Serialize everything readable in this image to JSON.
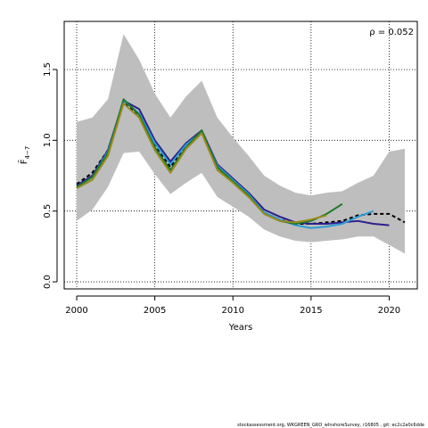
{
  "chart_data": {
    "type": "line",
    "xlabel": "Years",
    "ylabel": "F̄",
    "ylabel_sub": "4−7",
    "xlim": [
      1999.2,
      2021.8
    ],
    "ylim": [
      -0.05,
      1.84
    ],
    "xticks": [
      2000,
      2005,
      2010,
      2015,
      2020
    ],
    "yticks": [
      0.0,
      0.5,
      1.0,
      1.5
    ],
    "ytick_labels": [
      "0.0",
      "0.5",
      "1.0",
      "1.5"
    ],
    "grid": true,
    "annotation": "ρ = 0.052",
    "footer": "stockassessment.org, WKGREEN_GRO_wInshoreSurvey, r16805 , git: ec2c2a0c6dde",
    "band": {
      "color": "#bebebe",
      "x": [
        2000,
        2001,
        2002,
        2003,
        2004,
        2005,
        2006,
        2007,
        2008,
        2009,
        2010,
        2011,
        2012,
        2013,
        2014,
        2015,
        2016,
        2017,
        2018,
        2019,
        2020,
        2021
      ],
      "upper": [
        1.13,
        1.16,
        1.29,
        1.75,
        1.57,
        1.33,
        1.16,
        1.31,
        1.42,
        1.16,
        1.02,
        0.89,
        0.75,
        0.68,
        0.63,
        0.61,
        0.63,
        0.64,
        0.7,
        0.75,
        0.92,
        0.94
      ],
      "lower": [
        0.43,
        0.51,
        0.67,
        0.91,
        0.92,
        0.76,
        0.62,
        0.7,
        0.77,
        0.6,
        0.53,
        0.46,
        0.37,
        0.32,
        0.29,
        0.28,
        0.29,
        0.3,
        0.32,
        0.32,
        0.26,
        0.2
      ]
    },
    "series": [
      {
        "color": "#000000",
        "dash": "4,3",
        "x": [
          2000,
          2001,
          2002,
          2003,
          2004,
          2005,
          2006,
          2007,
          2008,
          2009,
          2010,
          2011,
          2012,
          2013,
          2014,
          2015,
          2016,
          2017,
          2018,
          2019,
          2020,
          2021
        ],
        "values": [
          0.69,
          0.77,
          0.93,
          1.27,
          1.18,
          0.96,
          0.81,
          0.96,
          1.06,
          0.81,
          0.71,
          0.62,
          0.49,
          0.44,
          0.41,
          0.41,
          0.42,
          0.43,
          0.47,
          0.48,
          0.48,
          0.42
        ]
      },
      {
        "color": "#2c1f8a",
        "dash": "",
        "x": [
          2000,
          2001,
          2002,
          2003,
          2004,
          2005,
          2006,
          2007,
          2008,
          2009,
          2010,
          2011,
          2012,
          2013,
          2014,
          2015,
          2016,
          2017,
          2018,
          2019,
          2020
        ],
        "values": [
          0.68,
          0.75,
          0.93,
          1.28,
          1.22,
          1.0,
          0.85,
          0.98,
          1.07,
          0.83,
          0.73,
          0.63,
          0.51,
          0.46,
          0.42,
          0.41,
          0.41,
          0.42,
          0.43,
          0.41,
          0.4
        ]
      },
      {
        "color": "#2f9bd4",
        "dash": "",
        "x": [
          2000,
          2001,
          2002,
          2003,
          2004,
          2005,
          2006,
          2007,
          2008,
          2009,
          2010,
          2011,
          2012,
          2013,
          2014,
          2015,
          2016,
          2017,
          2018,
          2019
        ],
        "values": [
          0.67,
          0.74,
          0.92,
          1.28,
          1.19,
          0.98,
          0.83,
          0.97,
          1.06,
          0.82,
          0.72,
          0.62,
          0.49,
          0.44,
          0.4,
          0.38,
          0.39,
          0.41,
          0.46,
          0.5
        ]
      },
      {
        "color": "#1f7a2a",
        "dash": "",
        "x": [
          2000,
          2001,
          2002,
          2003,
          2004,
          2005,
          2006,
          2007,
          2008,
          2009,
          2010,
          2011,
          2012,
          2013,
          2014,
          2015,
          2016,
          2017
        ],
        "values": [
          0.67,
          0.74,
          0.91,
          1.29,
          1.18,
          0.95,
          0.79,
          0.95,
          1.07,
          0.81,
          0.71,
          0.61,
          0.48,
          0.43,
          0.41,
          0.43,
          0.48,
          0.55
        ]
      },
      {
        "color": "#9a8a1e",
        "dash": "",
        "x": [
          2000,
          2001,
          2002,
          2003,
          2004,
          2005,
          2006,
          2007,
          2008,
          2009,
          2010,
          2011,
          2012,
          2013,
          2014,
          2015,
          2016
        ],
        "values": [
          0.66,
          0.72,
          0.89,
          1.26,
          1.16,
          0.93,
          0.77,
          0.94,
          1.05,
          0.79,
          0.7,
          0.6,
          0.48,
          0.43,
          0.42,
          0.44,
          0.47
        ]
      }
    ]
  }
}
